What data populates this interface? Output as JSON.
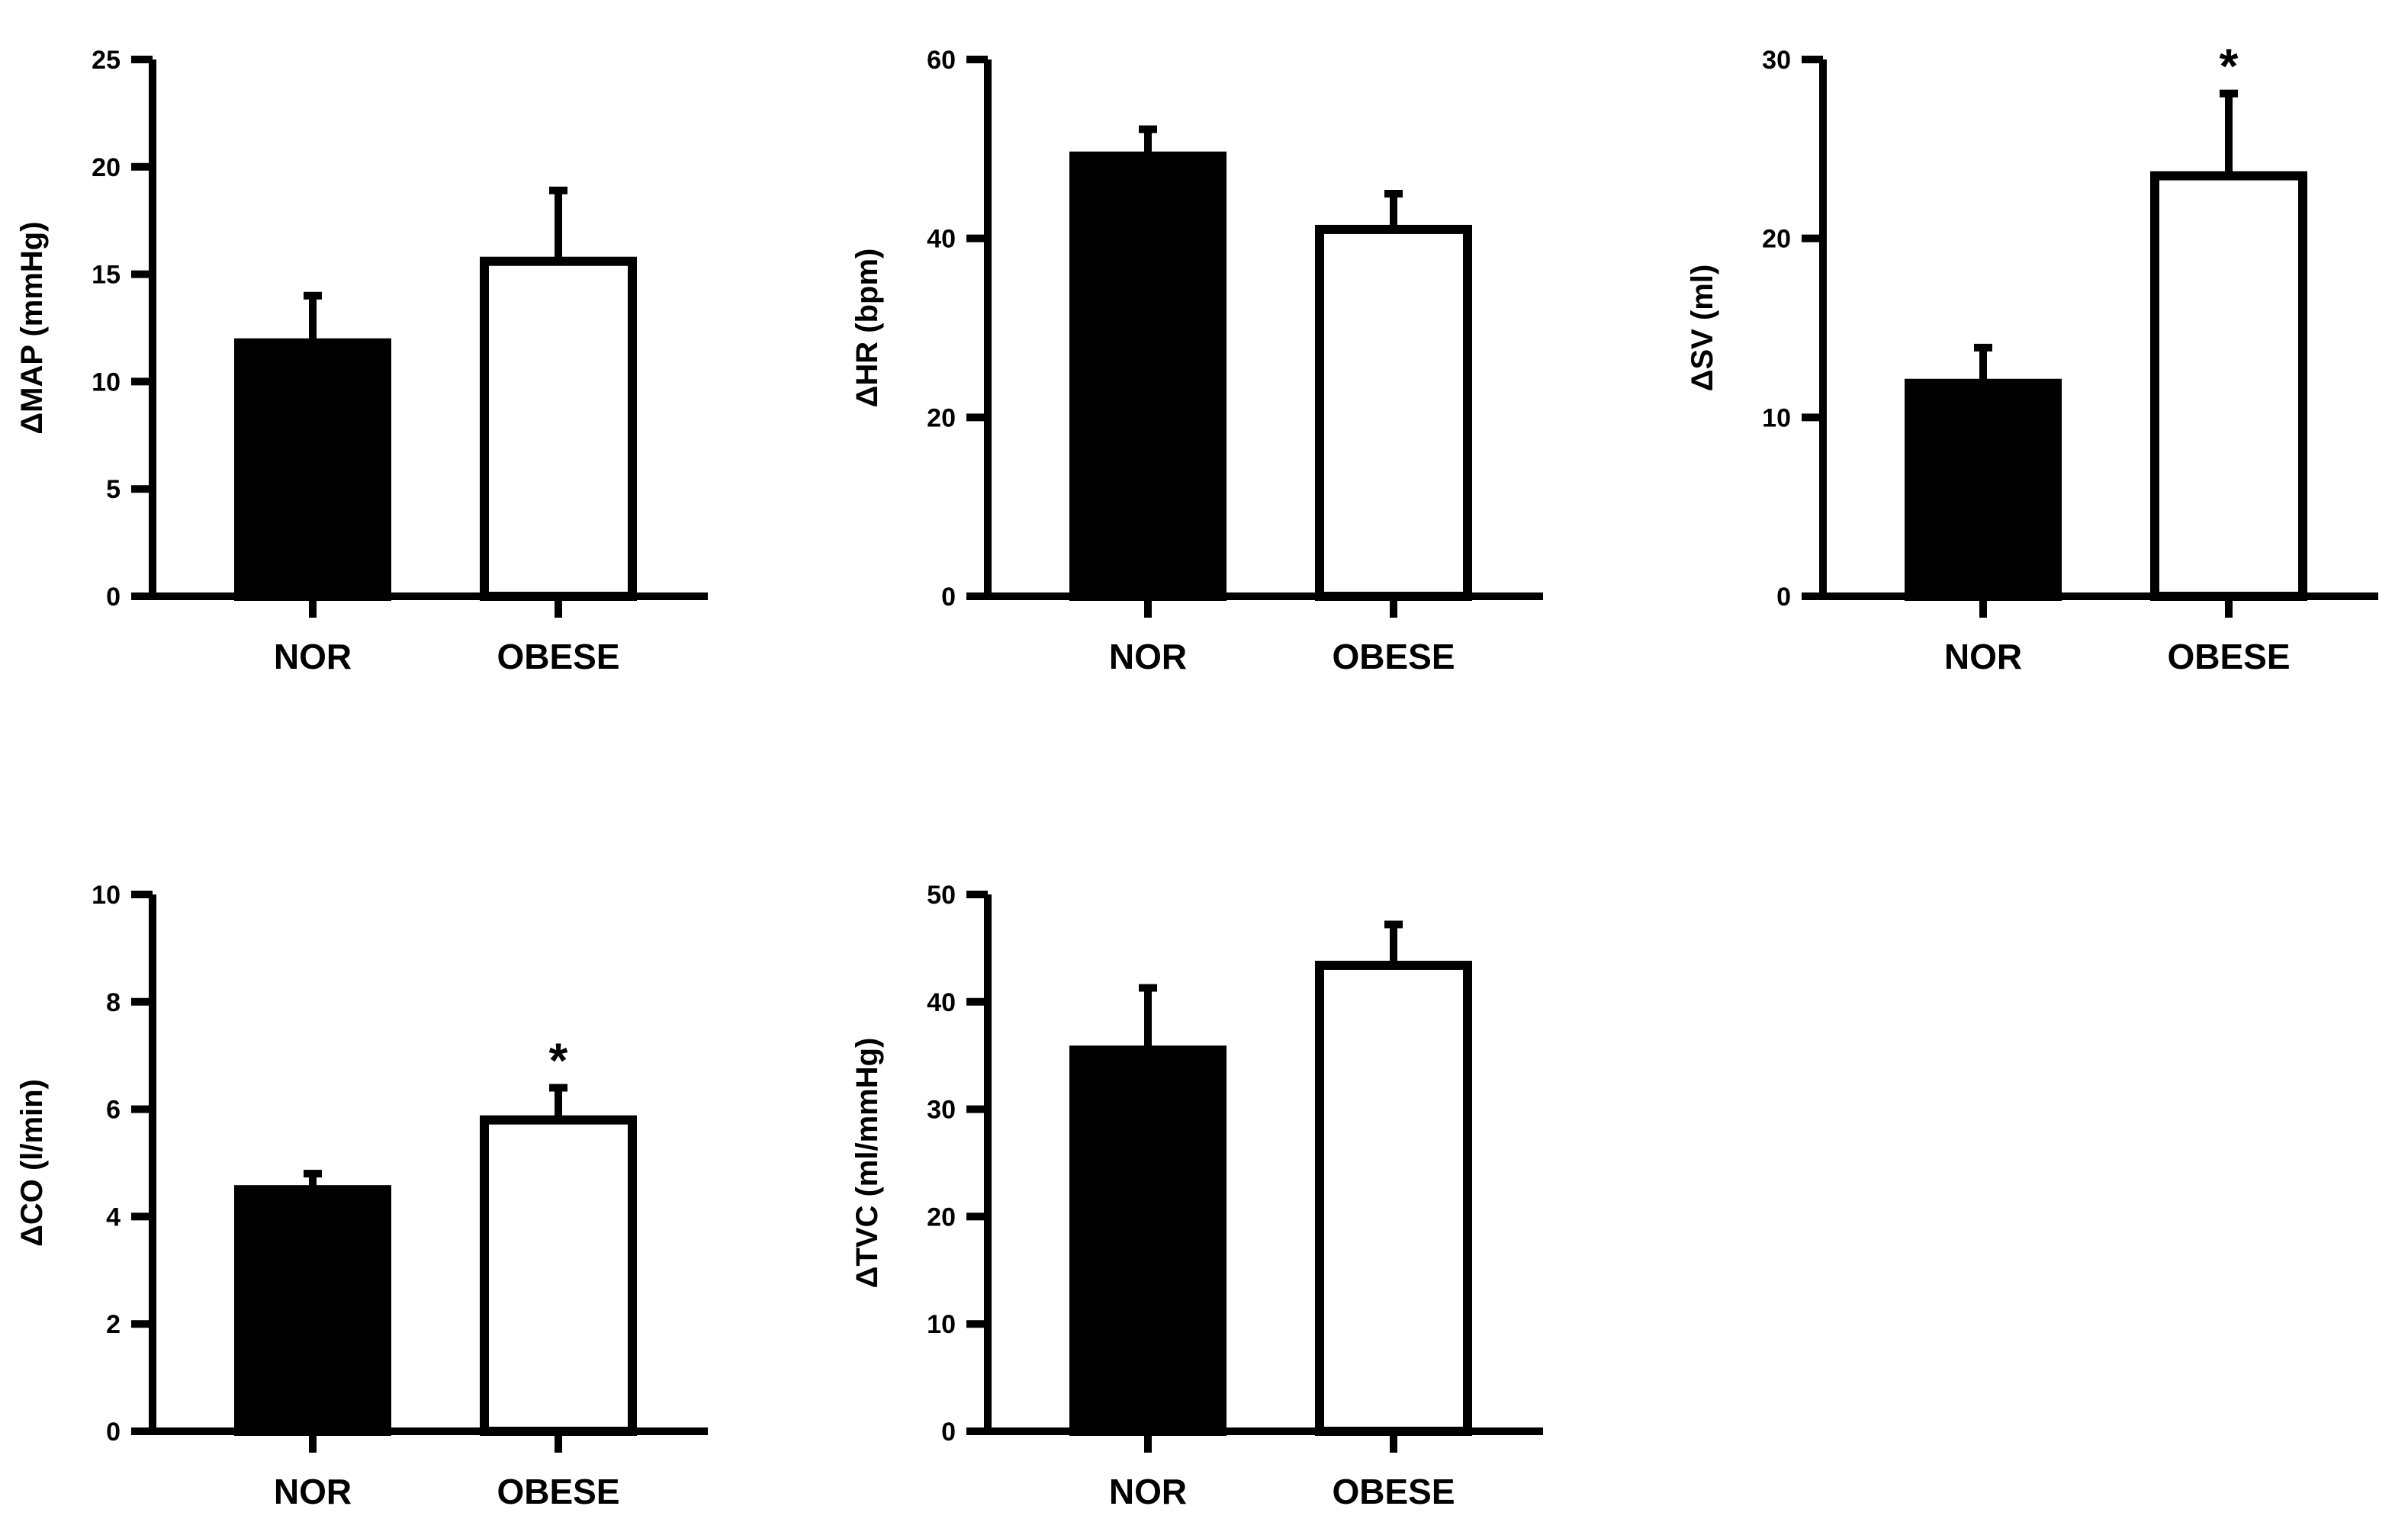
{
  "chart_data": [
    {
      "type": "bar",
      "ylabel": "ΔMAP (mmHg)",
      "ylim": [
        0,
        25
      ],
      "yticks": [
        0,
        5,
        10,
        15,
        20,
        25
      ],
      "categories": [
        "NOR",
        "OBESE"
      ],
      "values": [
        11.8,
        15.6
      ],
      "errors": [
        2.2,
        3.3
      ],
      "fills": [
        "#000000",
        "#ffffff"
      ],
      "significance": [
        "",
        ""
      ]
    },
    {
      "type": "bar",
      "ylabel": "ΔHR (bpm)",
      "ylim": [
        0,
        60
      ],
      "yticks": [
        0,
        20,
        40,
        60
      ],
      "categories": [
        "NOR",
        "OBESE"
      ],
      "values": [
        49.2,
        41.0
      ],
      "errors": [
        3.0,
        4.0
      ],
      "fills": [
        "#000000",
        "#ffffff"
      ],
      "significance": [
        "",
        ""
      ]
    },
    {
      "type": "bar",
      "ylabel": "ΔSV (ml)",
      "ylim": [
        0,
        30
      ],
      "yticks": [
        0,
        10,
        20,
        30
      ],
      "categories": [
        "NOR",
        "OBESE"
      ],
      "values": [
        11.9,
        23.5
      ],
      "errors": [
        2.0,
        4.6
      ],
      "fills": [
        "#000000",
        "#ffffff"
      ],
      "significance": [
        "",
        "*"
      ]
    },
    {
      "type": "bar",
      "ylabel": "ΔCO (l/min)",
      "ylim": [
        0,
        10
      ],
      "yticks": [
        0,
        2,
        4,
        6,
        8,
        10
      ],
      "categories": [
        "NOR",
        "OBESE"
      ],
      "values": [
        4.5,
        5.8
      ],
      "errors": [
        0.3,
        0.6
      ],
      "fills": [
        "#000000",
        "#ffffff"
      ],
      "significance": [
        "",
        "*"
      ]
    },
    {
      "type": "bar",
      "ylabel": "ΔTVC (ml/mmHg)",
      "ylim": [
        0,
        50
      ],
      "yticks": [
        0,
        10,
        20,
        30,
        40,
        50
      ],
      "categories": [
        "NOR",
        "OBESE"
      ],
      "values": [
        35.5,
        43.4
      ],
      "errors": [
        5.8,
        3.8
      ],
      "fills": [
        "#000000",
        "#ffffff"
      ],
      "significance": [
        "",
        ""
      ]
    }
  ]
}
